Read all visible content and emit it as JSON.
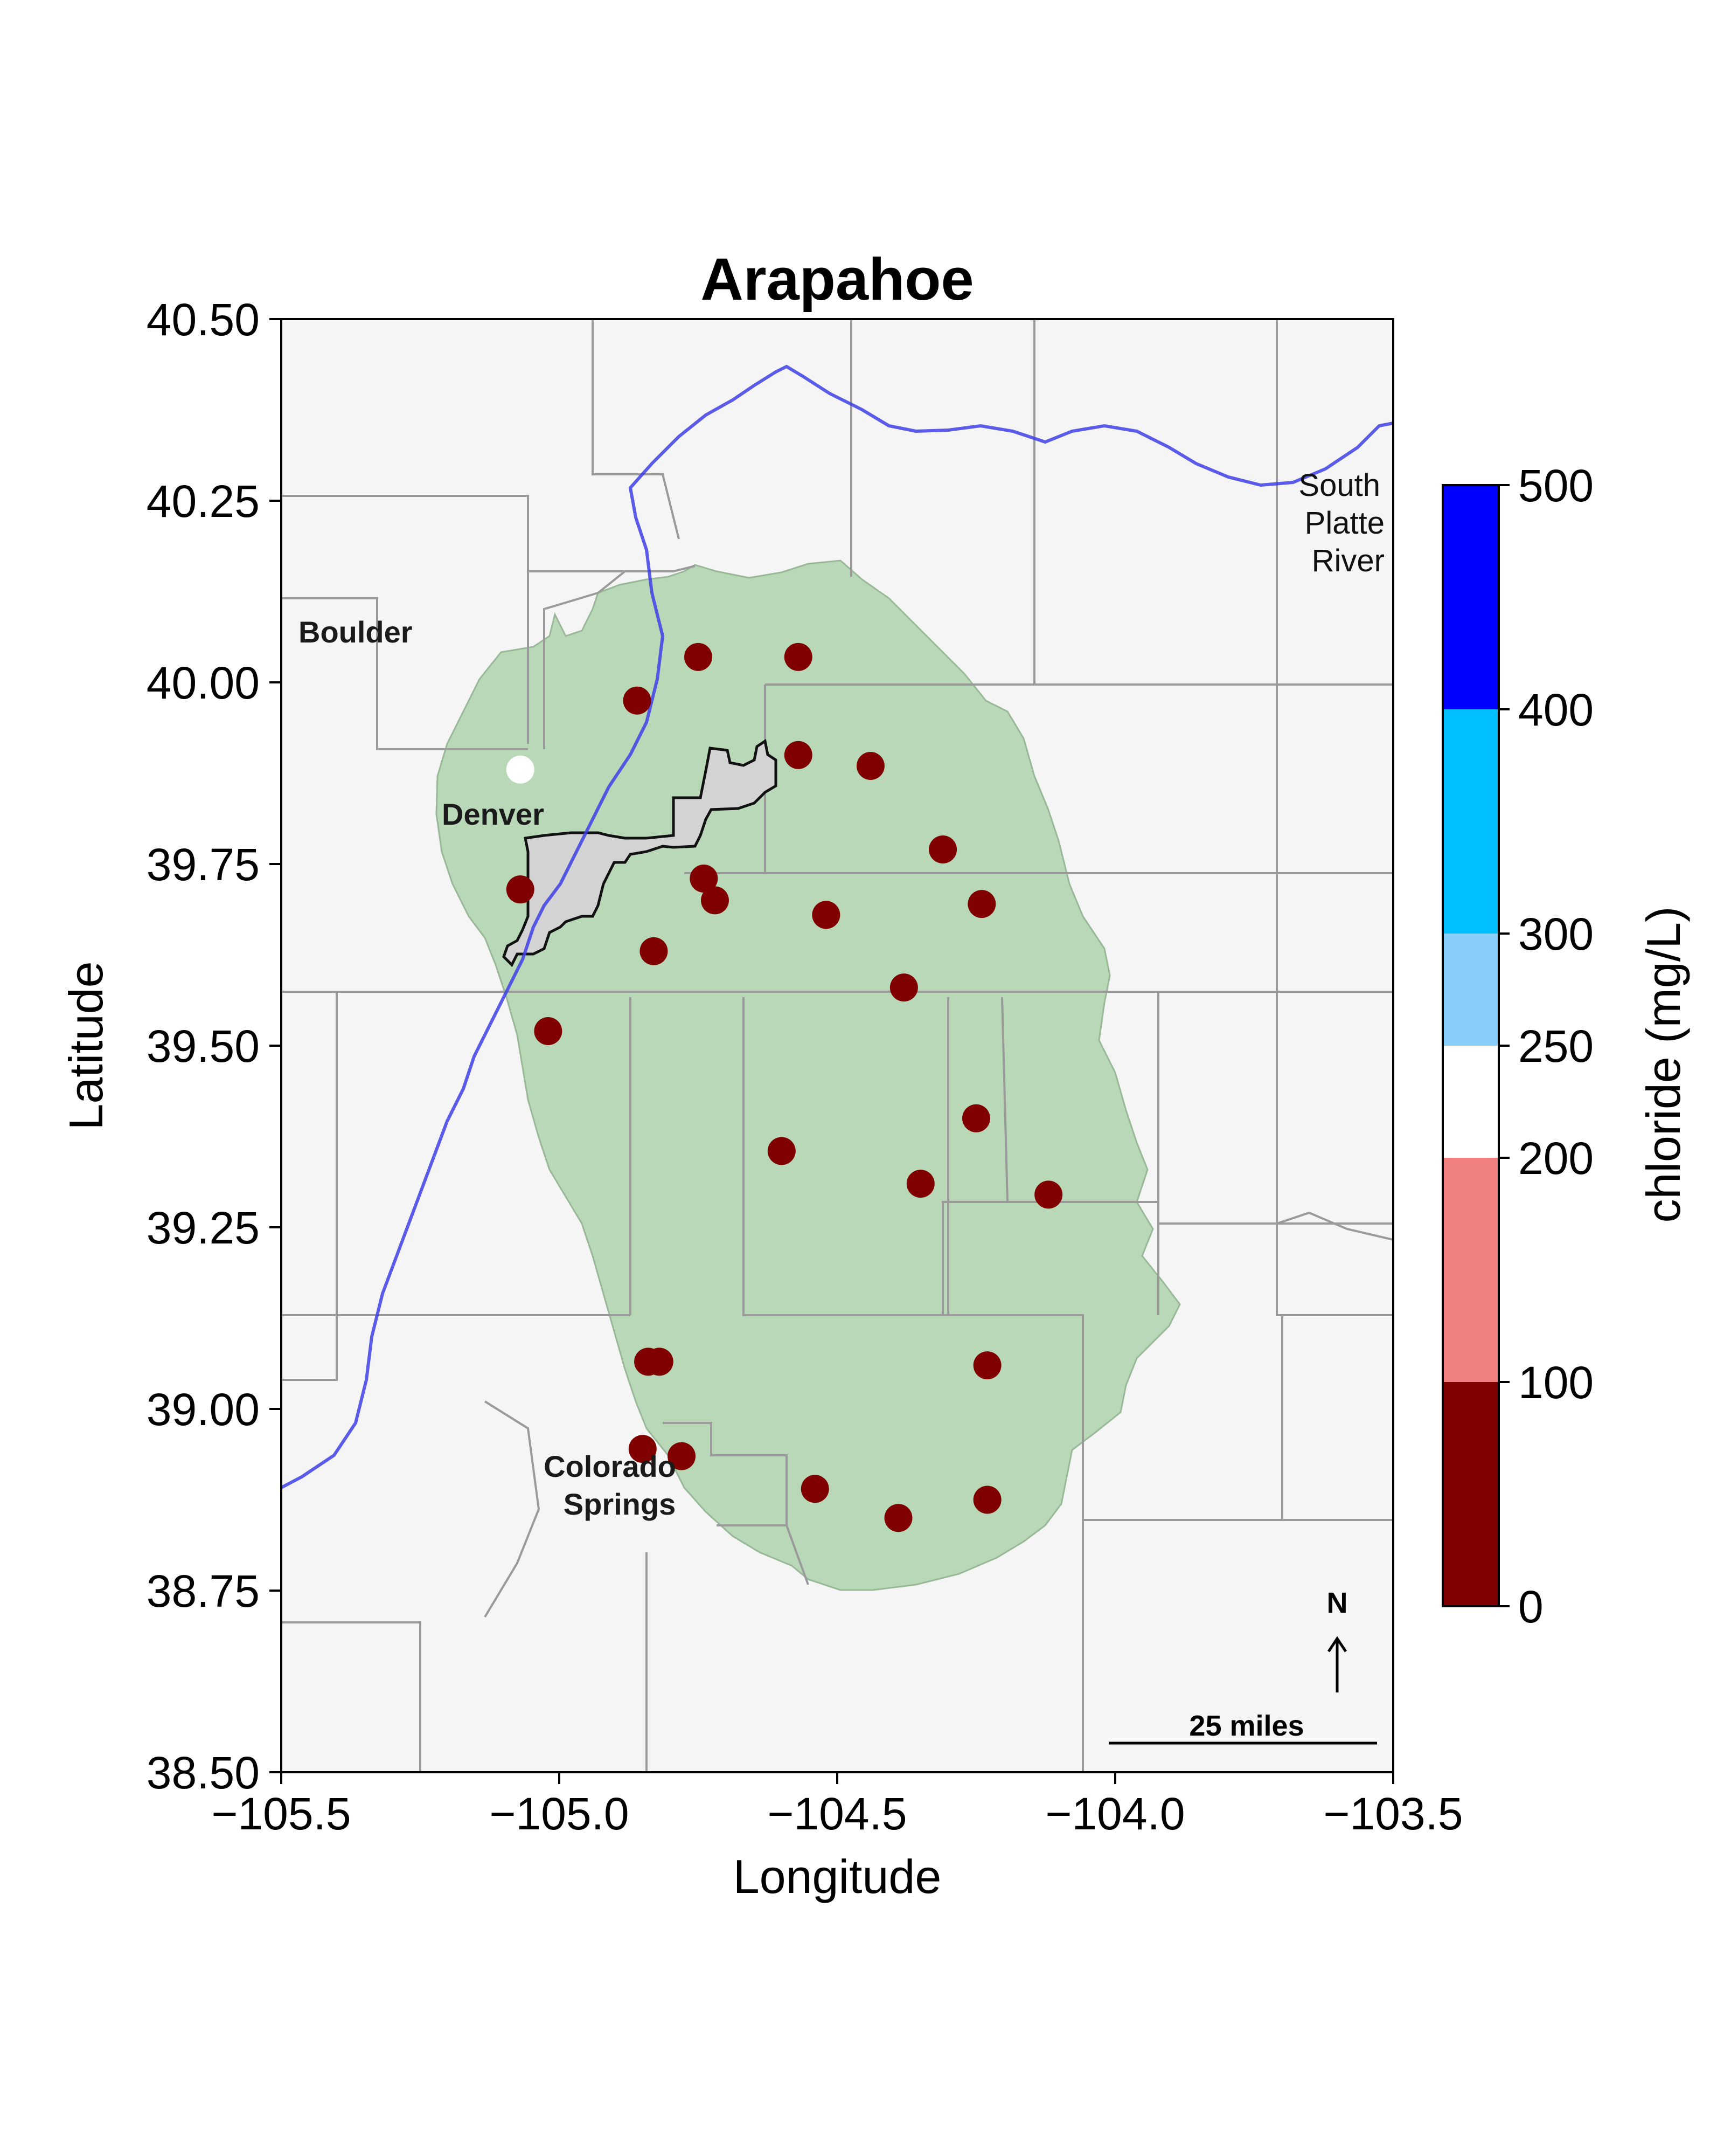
{
  "title": "Arapahoe",
  "xlabel": "Longitude",
  "ylabel": "Latitude",
  "x_ticks": [
    "−105.5",
    "−105.0",
    "−104.5",
    "−104.0",
    "−103.5"
  ],
  "y_ticks": [
    "38.50",
    "38.75",
    "39.00",
    "39.25",
    "39.50",
    "39.75",
    "40.00",
    "40.25",
    "40.50"
  ],
  "places": {
    "boulder": "Boulder",
    "denver": "Denver",
    "colorado_springs_line1": "Colorado",
    "colorado_springs_line2": "Springs",
    "river_line1": "South",
    "river_line2": "Platte",
    "river_line3": "River"
  },
  "colorbar": {
    "label": "chloride (mg/L)",
    "ticks": [
      "0",
      "100",
      "200",
      "250",
      "300",
      "400",
      "500"
    ],
    "bins": [
      {
        "from": 0,
        "to": 100,
        "color": "#800000"
      },
      {
        "from": 100,
        "to": 200,
        "color": "#f08080"
      },
      {
        "from": 200,
        "to": 250,
        "color": "#ffffff"
      },
      {
        "from": 250,
        "to": 300,
        "color": "#87cefa"
      },
      {
        "from": 300,
        "to": 400,
        "color": "#00bfff"
      },
      {
        "from": 400,
        "to": 500,
        "color": "#0000ff"
      }
    ]
  },
  "scale_bar_label": "25 miles",
  "north_label": "N",
  "colors": {
    "background": "#f5f5f5",
    "aquifer_fill": "#b9d8b8",
    "denver_fill": "#d3d3d3",
    "river": "#3f3fe6",
    "county_lines": "#9a9a9a"
  },
  "chart_data": {
    "type": "scatter",
    "title": "Arapahoe",
    "xlabel": "Longitude",
    "ylabel": "Latitude",
    "xlim": [
      -105.5,
      -103.5
    ],
    "ylim": [
      38.5,
      40.5
    ],
    "grid": false,
    "legend": "colorbar right",
    "series": [
      {
        "name": "chloride (mg/L)",
        "points": [
          {
            "lon": -104.75,
            "lat": 40.035,
            "chloride": 50
          },
          {
            "lon": -104.57,
            "lat": 40.035,
            "chloride": 50
          },
          {
            "lon": -104.86,
            "lat": 39.975,
            "chloride": 50
          },
          {
            "lon": -104.57,
            "lat": 39.9,
            "chloride": 50
          },
          {
            "lon": -104.44,
            "lat": 39.885,
            "chloride": 50
          },
          {
            "lon": -105.07,
            "lat": 39.88,
            "chloride": 230
          },
          {
            "lon": -104.31,
            "lat": 39.77,
            "chloride": 50
          },
          {
            "lon": -105.07,
            "lat": 39.715,
            "chloride": 50
          },
          {
            "lon": -104.74,
            "lat": 39.73,
            "chloride": 50
          },
          {
            "lon": -104.72,
            "lat": 39.7,
            "chloride": 50
          },
          {
            "lon": -104.52,
            "lat": 39.68,
            "chloride": 50
          },
          {
            "lon": -104.24,
            "lat": 39.695,
            "chloride": 50
          },
          {
            "lon": -104.83,
            "lat": 39.63,
            "chloride": 50
          },
          {
            "lon": -104.38,
            "lat": 39.58,
            "chloride": 50
          },
          {
            "lon": -105.02,
            "lat": 39.52,
            "chloride": 50
          },
          {
            "lon": -104.25,
            "lat": 39.4,
            "chloride": 50
          },
          {
            "lon": -104.6,
            "lat": 39.355,
            "chloride": 50
          },
          {
            "lon": -104.35,
            "lat": 39.31,
            "chloride": 50
          },
          {
            "lon": -104.12,
            "lat": 39.295,
            "chloride": 50
          },
          {
            "lon": -104.84,
            "lat": 39.065,
            "chloride": 50
          },
          {
            "lon": -104.82,
            "lat": 39.065,
            "chloride": 50
          },
          {
            "lon": -104.23,
            "lat": 39.06,
            "chloride": 50
          },
          {
            "lon": -104.85,
            "lat": 38.945,
            "chloride": 50
          },
          {
            "lon": -104.78,
            "lat": 38.935,
            "chloride": 50
          },
          {
            "lon": -104.54,
            "lat": 38.89,
            "chloride": 50
          },
          {
            "lon": -104.23,
            "lat": 38.875,
            "chloride": 50
          },
          {
            "lon": -104.39,
            "lat": 38.85,
            "chloride": 50
          }
        ]
      }
    ]
  }
}
